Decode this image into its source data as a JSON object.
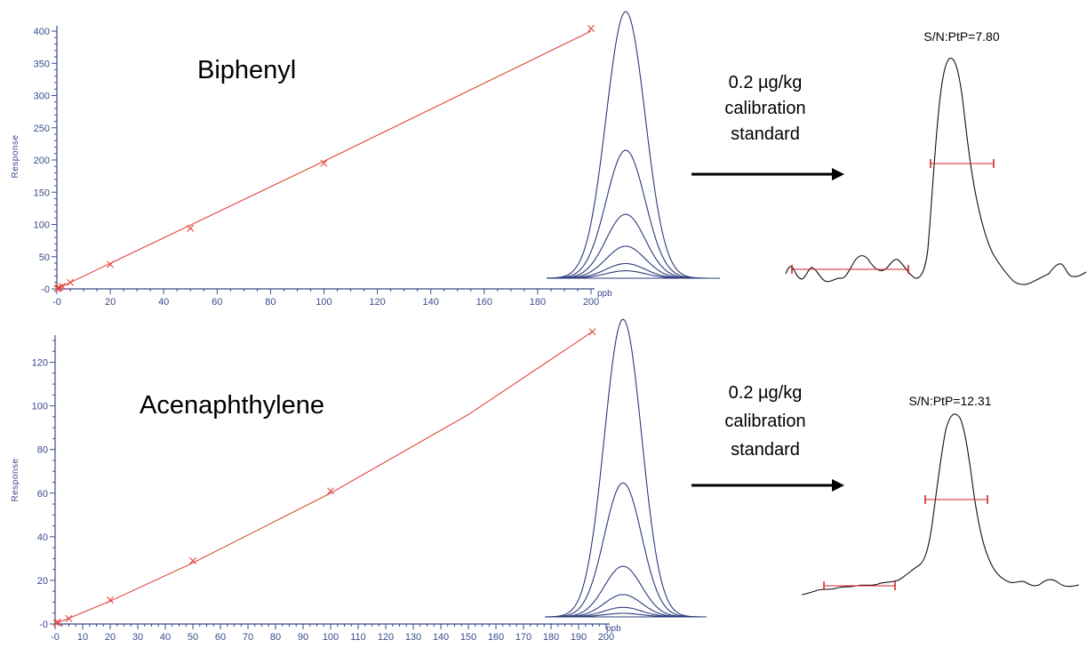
{
  "chart_data": [
    {
      "type": "line",
      "title": "Biphenyl",
      "xlabel": "",
      "x_unit": "ppb",
      "ylabel": "Response",
      "xlim": [
        0,
        200
      ],
      "ylim": [
        0,
        400
      ],
      "x_ticks": [
        0,
        20,
        40,
        60,
        80,
        100,
        120,
        140,
        160,
        180,
        200
      ],
      "x_tick_labels": [
        "-0",
        "20",
        "40",
        "60",
        "80",
        "100",
        "120",
        "140",
        "160",
        "180",
        "200"
      ],
      "y_ticks": [
        0,
        50,
        100,
        150,
        200,
        250,
        300,
        350,
        400
      ],
      "y_tick_labels": [
        "-0",
        "50",
        "100",
        "150",
        "200",
        "250",
        "300",
        "350",
        "400"
      ],
      "fit": {
        "x": [
          0,
          50,
          100,
          200
        ],
        "y": [
          0,
          99,
          198,
          400
        ]
      },
      "points": [
        {
          "x": 0.2,
          "y": 0.4
        },
        {
          "x": 0.5,
          "y": 1
        },
        {
          "x": 1,
          "y": 2
        },
        {
          "x": 2,
          "y": 4
        },
        {
          "x": 5,
          "y": 10
        },
        {
          "x": 20,
          "y": 38
        },
        {
          "x": 50,
          "y": 94
        },
        {
          "x": 100,
          "y": 195
        },
        {
          "x": 200,
          "y": 404
        }
      ],
      "peaks_overlay": {
        "relative_heights": [
          1.0,
          0.48,
          0.24,
          0.12,
          0.055,
          0.028
        ]
      },
      "annotation": {
        "arrow_label": [
          "0.2 µg/kg",
          "calibration",
          "standard"
        ],
        "signal_to_noise": "S/N:PtP=7.80"
      }
    },
    {
      "type": "line",
      "title": "Acenaphthylene",
      "xlabel": "",
      "x_unit": "ppb",
      "ylabel": "Response",
      "xlim": [
        0,
        200
      ],
      "ylim": [
        0,
        130
      ],
      "x_ticks": [
        0,
        10,
        20,
        30,
        40,
        50,
        60,
        70,
        80,
        90,
        100,
        110,
        120,
        130,
        140,
        150,
        160,
        170,
        180,
        190,
        200
      ],
      "x_tick_labels": [
        "-0",
        "10",
        "20",
        "30",
        "40",
        "50",
        "60",
        "70",
        "80",
        "90",
        "100",
        "110",
        "120",
        "130",
        "140",
        "150",
        "160",
        "170",
        "180",
        "190",
        "200"
      ],
      "y_ticks": [
        0,
        20,
        40,
        60,
        80,
        100,
        120
      ],
      "y_tick_labels": [
        "-0",
        "20",
        "40",
        "60",
        "80",
        "100",
        "120"
      ],
      "fit": {
        "x": [
          0,
          20,
          50,
          100,
          150,
          195
        ],
        "y": [
          0,
          10.5,
          28,
          60,
          96,
          134
        ]
      },
      "points": [
        {
          "x": 0.5,
          "y": 0.5
        },
        {
          "x": 1,
          "y": 0.8
        },
        {
          "x": 5,
          "y": 2.5
        },
        {
          "x": 20,
          "y": 11
        },
        {
          "x": 50,
          "y": 29
        },
        {
          "x": 100,
          "y": 61
        },
        {
          "x": 195,
          "y": 134
        }
      ],
      "peaks_overlay": {
        "relative_heights": [
          1.0,
          0.45,
          0.17,
          0.075,
          0.032,
          0.012
        ]
      },
      "annotation": {
        "arrow_label": [
          "0.2 µg/kg",
          "calibration",
          "standard"
        ],
        "signal_to_noise": "S/N:PtP=12.31"
      }
    }
  ]
}
